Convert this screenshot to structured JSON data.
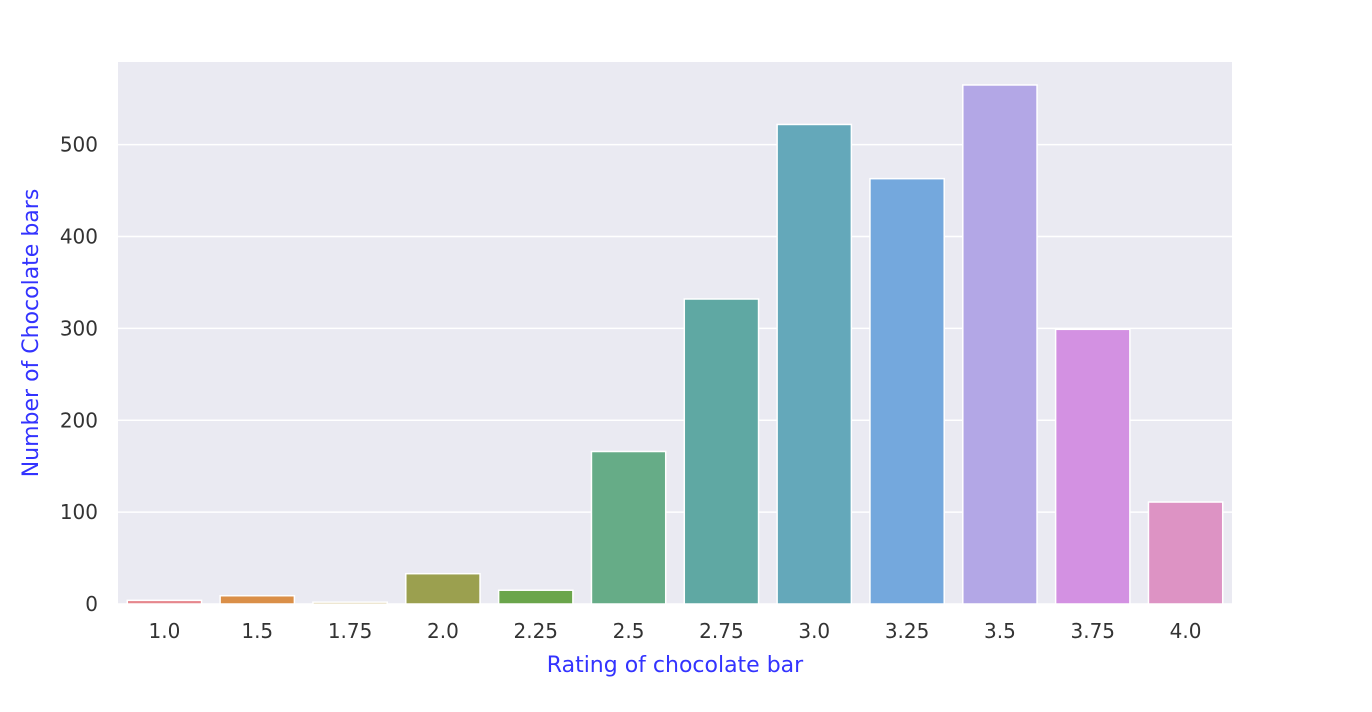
{
  "chart_data": {
    "type": "bar",
    "title": "",
    "xlabel": "Rating of chocolate bar",
    "ylabel": "Number of Chocolate bars",
    "categories": [
      "1.0",
      "1.5",
      "1.75",
      "2.0",
      "2.25",
      "2.5",
      "2.75",
      "3.0",
      "3.25",
      "3.5",
      "3.75",
      "4.0"
    ],
    "values": [
      4,
      9,
      2,
      33,
      15,
      166,
      332,
      522,
      463,
      565,
      299,
      111
    ],
    "ylim": [
      0,
      590
    ],
    "yticks": [
      0,
      100,
      200,
      300,
      400,
      500
    ],
    "grid": true,
    "legend": "none",
    "colors": [
      "#e6878d",
      "#da8f48",
      "#b9a04f",
      "#9ba04f",
      "#6aa54b",
      "#66ac87",
      "#5fa8a3",
      "#64a8ba",
      "#74a8dd",
      "#b3a7e6",
      "#d391e2",
      "#dd93c4"
    ],
    "label_color": "#3333ff",
    "plot_background": "#eaeaf2"
  }
}
